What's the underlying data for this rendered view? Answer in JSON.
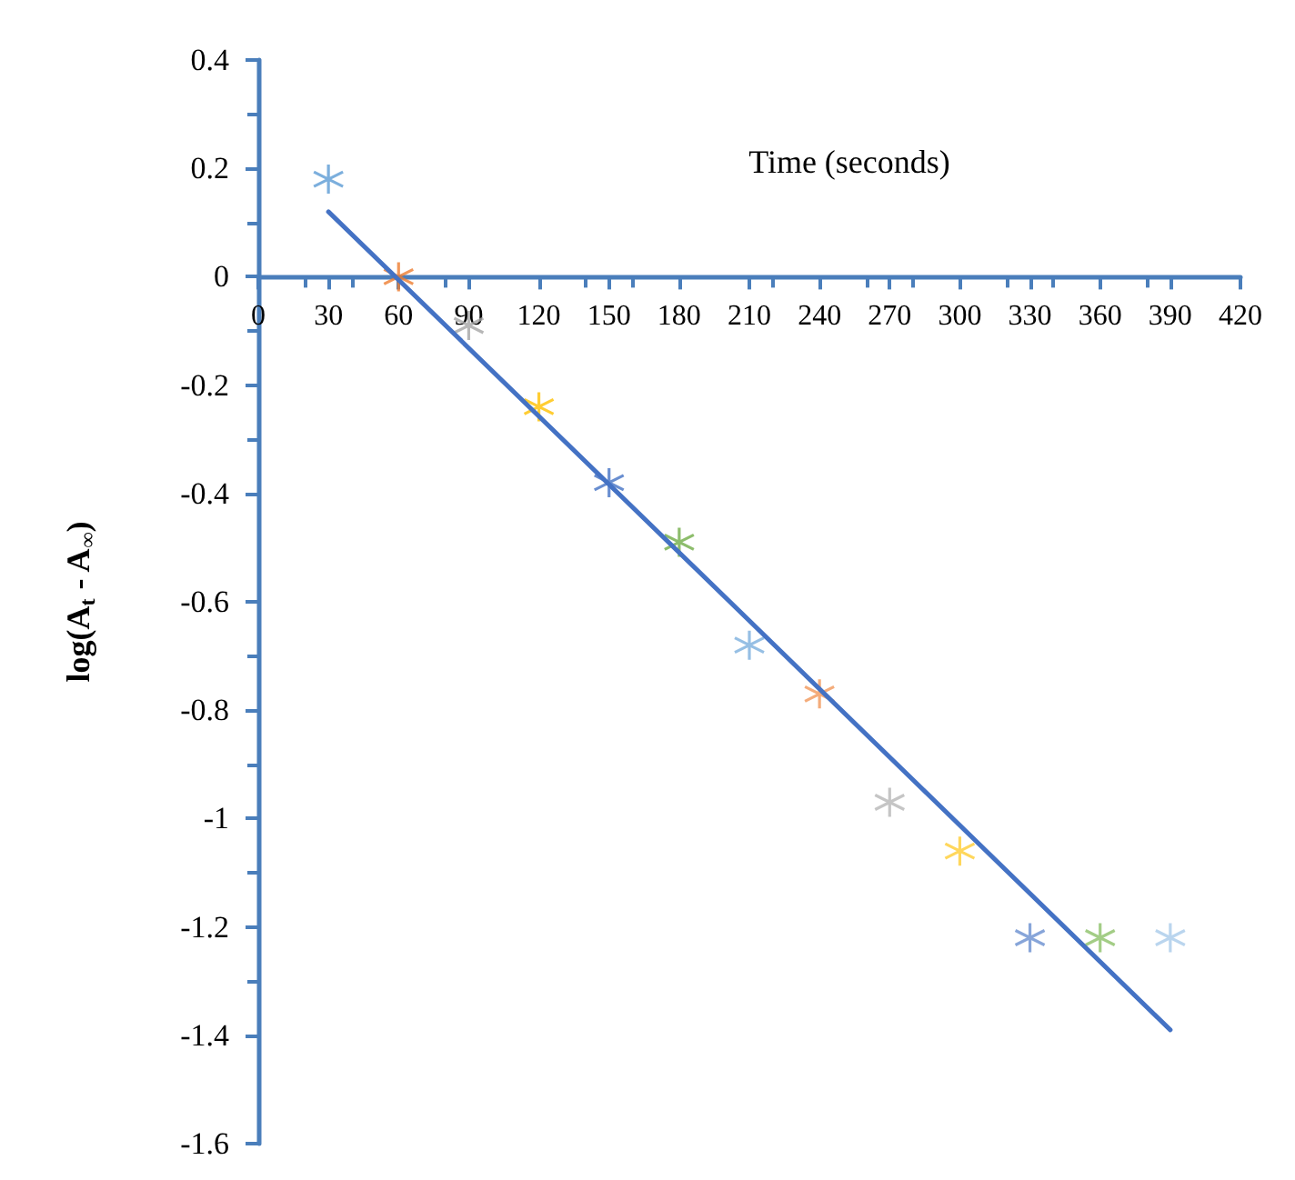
{
  "chart_data": {
    "type": "scatter",
    "xlabel": "Time (seconds)",
    "ylabel": "log(A$_{t}$ - A$_{∞}$)",
    "xlim": [
      0,
      420
    ],
    "xticks": [
      0,
      30,
      60,
      90,
      120,
      150,
      180,
      210,
      240,
      270,
      300,
      330,
      360,
      390,
      420
    ],
    "ylim": [
      -1.6,
      0.4
    ],
    "yticks": [
      -1.6,
      -1.4,
      -1.2,
      -1,
      -0.8,
      -0.6,
      -0.4,
      -0.2,
      0,
      0.2,
      0.4
    ],
    "grid": false,
    "marker": "cross",
    "series": [
      {
        "x": [
          30,
          60,
          90,
          120,
          150,
          180,
          210,
          240,
          270,
          300,
          330,
          360,
          390
        ],
        "values": [
          0.18,
          0.0,
          -0.09,
          -0.24,
          -0.38,
          -0.49,
          -0.68,
          -0.77,
          -0.97,
          -1.06,
          -1.22,
          -1.22,
          -1.22
        ],
        "colors": [
          "#5b9bd5",
          "#ed7d31",
          "#a5a5a5",
          "#ffc000",
          "#4472c4",
          "#70ad47",
          "#7cafdd",
          "#f1975a",
          "#b7b7b7",
          "#ffcd33",
          "#698ed0",
          "#8cc168",
          "#a9cbea"
        ]
      },
      {
        "type": "line",
        "x": [
          30,
          390
        ],
        "values": [
          0.12,
          -1.39
        ],
        "color": "#4472c4",
        "marker": "none"
      }
    ]
  }
}
